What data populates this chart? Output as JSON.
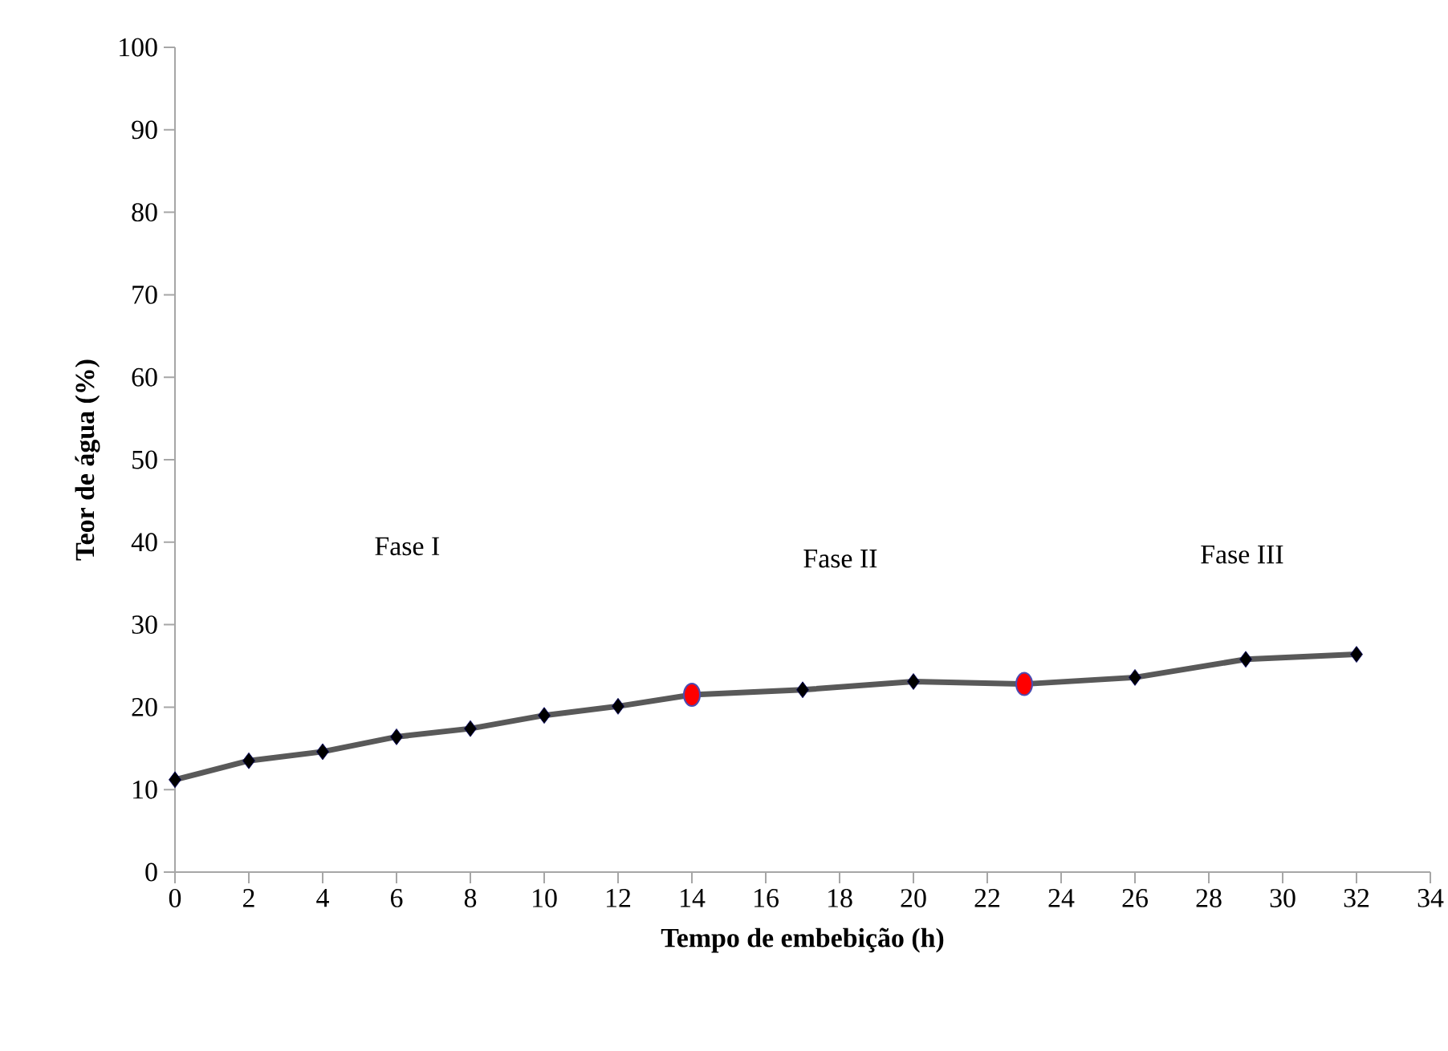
{
  "chart_data": {
    "type": "line",
    "xlabel": "Tempo de embebição (h)",
    "ylabel": "Teor de água (%)",
    "xlim": [
      0,
      34
    ],
    "ylim": [
      0,
      100
    ],
    "xticks": [
      0,
      2,
      4,
      6,
      8,
      10,
      12,
      14,
      16,
      18,
      20,
      22,
      24,
      26,
      28,
      30,
      32,
      34
    ],
    "yticks": [
      0,
      10,
      20,
      30,
      40,
      50,
      60,
      70,
      80,
      90,
      100
    ],
    "grid": false,
    "annotations": [
      "Fase I",
      "Fase II",
      "Fase III"
    ],
    "series": [
      {
        "color": "#595959",
        "marker": "diamond",
        "x": [
          0,
          2,
          4,
          6,
          8,
          10,
          12,
          14,
          17,
          20,
          23,
          26,
          29,
          32
        ],
        "values": [
          11.2,
          13.5,
          14.6,
          16.4,
          17.4,
          19.0,
          20.1,
          21.5,
          22.1,
          23.1,
          22.8,
          23.6,
          25.8,
          26.4
        ]
      },
      {
        "type": "scatter",
        "color": "#ff0000",
        "marker": "circle",
        "x": [
          14,
          23
        ],
        "values": [
          21.5,
          22.8
        ]
      }
    ]
  }
}
